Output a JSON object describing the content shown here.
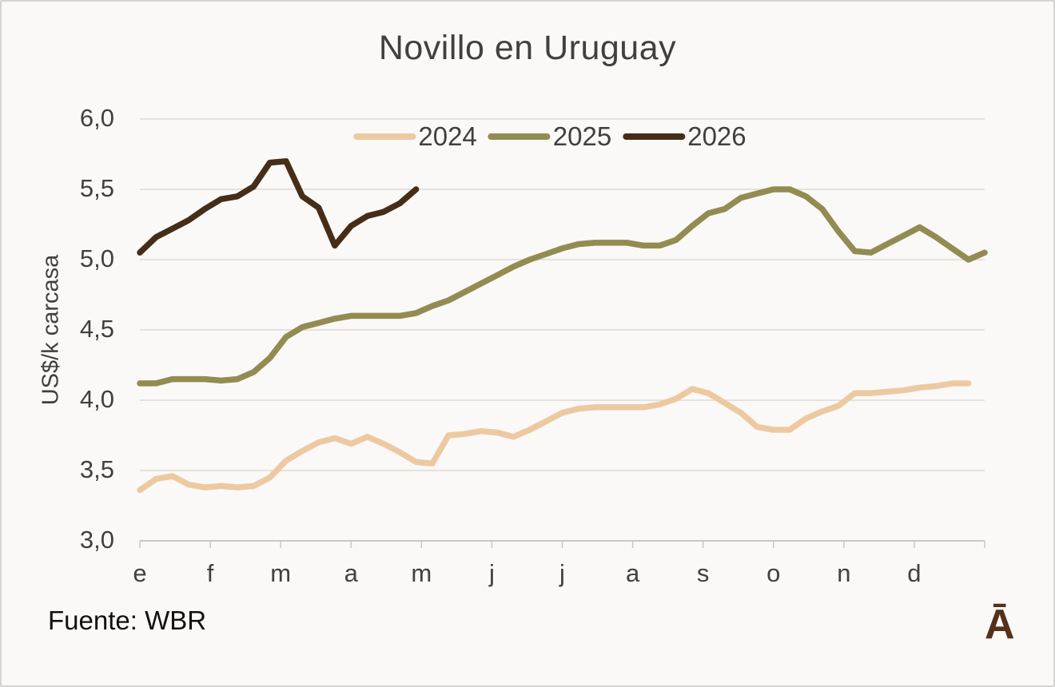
{
  "source": "Fuente: WBR",
  "logo_glyph": "Ā",
  "colors": {
    "background": "#fbf9f7",
    "border": "#d8d3d0",
    "grid": "#e5e1de",
    "axis": "#ccc6c1",
    "text": "#404040",
    "source_text": "#111111",
    "logo": "#55311a"
  },
  "chart_data": {
    "type": "line",
    "title": "Novillo en Uruguay",
    "xlabel": "",
    "ylabel": "US$/k carcasa",
    "ylim": [
      3.0,
      6.0
    ],
    "ytick_values": [
      6.0,
      5.5,
      5.0,
      4.5,
      4.0,
      3.5,
      3.0
    ],
    "ytick_labels": [
      "6,0",
      "5,5",
      "5,0",
      "4,5",
      "4,0",
      "3,5",
      "3,0"
    ],
    "categories": [
      "e",
      "f",
      "m",
      "a",
      "m",
      "j",
      "j",
      "a",
      "s",
      "o",
      "n",
      "d"
    ],
    "x_frequency": "weekly",
    "weeks_per_year": 52,
    "grid": true,
    "legend_position": "top-center",
    "series": [
      {
        "name": "2024",
        "color": "#edc9a2",
        "values": [
          3.36,
          3.44,
          3.46,
          3.4,
          3.38,
          3.39,
          3.38,
          3.39,
          3.45,
          3.57,
          3.64,
          3.7,
          3.73,
          3.69,
          3.74,
          3.69,
          3.63,
          3.56,
          3.55,
          3.75,
          3.76,
          3.78,
          3.77,
          3.74,
          3.79,
          3.85,
          3.91,
          3.94,
          3.95,
          3.95,
          3.95,
          3.95,
          3.97,
          4.01,
          4.08,
          4.05,
          3.98,
          3.91,
          3.81,
          3.79,
          3.79,
          3.87,
          3.92,
          3.96,
          4.05,
          4.05,
          4.06,
          4.07,
          4.09,
          4.1,
          4.12,
          4.12
        ]
      },
      {
        "name": "2025",
        "color": "#938c52",
        "values": [
          4.12,
          4.12,
          4.15,
          4.15,
          4.15,
          4.14,
          4.15,
          4.2,
          4.3,
          4.45,
          4.52,
          4.55,
          4.58,
          4.6,
          4.6,
          4.6,
          4.6,
          4.62,
          4.67,
          4.71,
          4.77,
          4.83,
          4.89,
          4.95,
          5.0,
          5.04,
          5.08,
          5.11,
          5.12,
          5.12,
          5.12,
          5.1,
          5.1,
          5.14,
          5.24,
          5.33,
          5.36,
          5.44,
          5.47,
          5.5,
          5.5,
          5.45,
          5.36,
          5.2,
          5.06,
          5.05,
          5.11,
          5.17,
          5.23,
          5.16,
          5.08,
          5.0,
          5.05
        ]
      },
      {
        "name": "2026",
        "color": "#452d17",
        "values": [
          5.05,
          5.16,
          5.22,
          5.28,
          5.36,
          5.43,
          5.45,
          5.52,
          5.69,
          5.7,
          5.45,
          5.37,
          5.1,
          5.24,
          5.31,
          5.34,
          5.4,
          5.5
        ]
      }
    ]
  }
}
